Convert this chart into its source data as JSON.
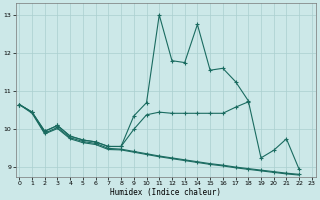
{
  "xlabel": "Humidex (Indice chaleur)",
  "bg_color": "#cce8e8",
  "line_color": "#1a6b60",
  "grid_color": "#aacfcf",
  "xlim": [
    -0.3,
    23.3
  ],
  "ylim": [
    8.75,
    13.3
  ],
  "yticks": [
    9,
    10,
    11,
    12,
    13
  ],
  "xticks": [
    0,
    1,
    2,
    3,
    4,
    5,
    6,
    7,
    8,
    9,
    10,
    11,
    12,
    13,
    14,
    15,
    16,
    17,
    18,
    19,
    20,
    21,
    22,
    23
  ],
  "curve1_x": [
    0,
    1,
    2,
    3,
    4,
    5,
    6,
    7,
    8,
    9,
    10,
    11,
    12,
    13,
    14,
    15,
    16,
    17,
    18,
    19,
    20,
    21,
    22
  ],
  "curve1_y": [
    10.65,
    10.45,
    9.95,
    10.1,
    9.82,
    9.72,
    9.67,
    9.55,
    9.55,
    10.35,
    10.7,
    13.0,
    11.8,
    11.75,
    12.75,
    11.55,
    11.6,
    11.25,
    10.75,
    9.25,
    9.45,
    9.75,
    8.95
  ],
  "curve2_x": [
    0,
    1,
    2,
    3,
    4,
    5,
    6,
    7,
    8,
    9,
    10,
    11,
    12,
    13,
    14,
    15,
    16,
    17,
    18
  ],
  "curve2_y": [
    10.65,
    10.45,
    9.95,
    10.1,
    9.82,
    9.72,
    9.67,
    9.55,
    9.55,
    10.0,
    10.38,
    10.45,
    10.42,
    10.42,
    10.42,
    10.42,
    10.42,
    10.58,
    10.72
  ],
  "curve3_x": [
    0,
    1,
    2,
    3,
    4,
    5,
    6,
    7,
    8,
    9,
    10,
    11,
    12,
    13,
    14,
    15,
    16,
    17,
    18,
    19,
    20,
    21,
    22
  ],
  "curve3_y": [
    10.65,
    10.45,
    9.9,
    10.05,
    9.78,
    9.68,
    9.63,
    9.5,
    9.48,
    9.42,
    9.36,
    9.3,
    9.25,
    9.2,
    9.15,
    9.1,
    9.06,
    9.01,
    8.97,
    8.93,
    8.89,
    8.85,
    8.82
  ],
  "curve4_x": [
    0,
    1,
    2,
    3,
    4,
    5,
    6,
    7,
    8,
    9,
    10,
    11,
    12,
    13,
    14,
    15,
    16,
    17,
    18,
    19,
    20,
    21,
    22
  ],
  "curve4_y": [
    10.65,
    10.42,
    9.88,
    10.02,
    9.75,
    9.65,
    9.6,
    9.47,
    9.46,
    9.4,
    9.34,
    9.28,
    9.23,
    9.18,
    9.13,
    9.08,
    9.04,
    8.99,
    8.95,
    8.91,
    8.87,
    8.83,
    8.8
  ]
}
